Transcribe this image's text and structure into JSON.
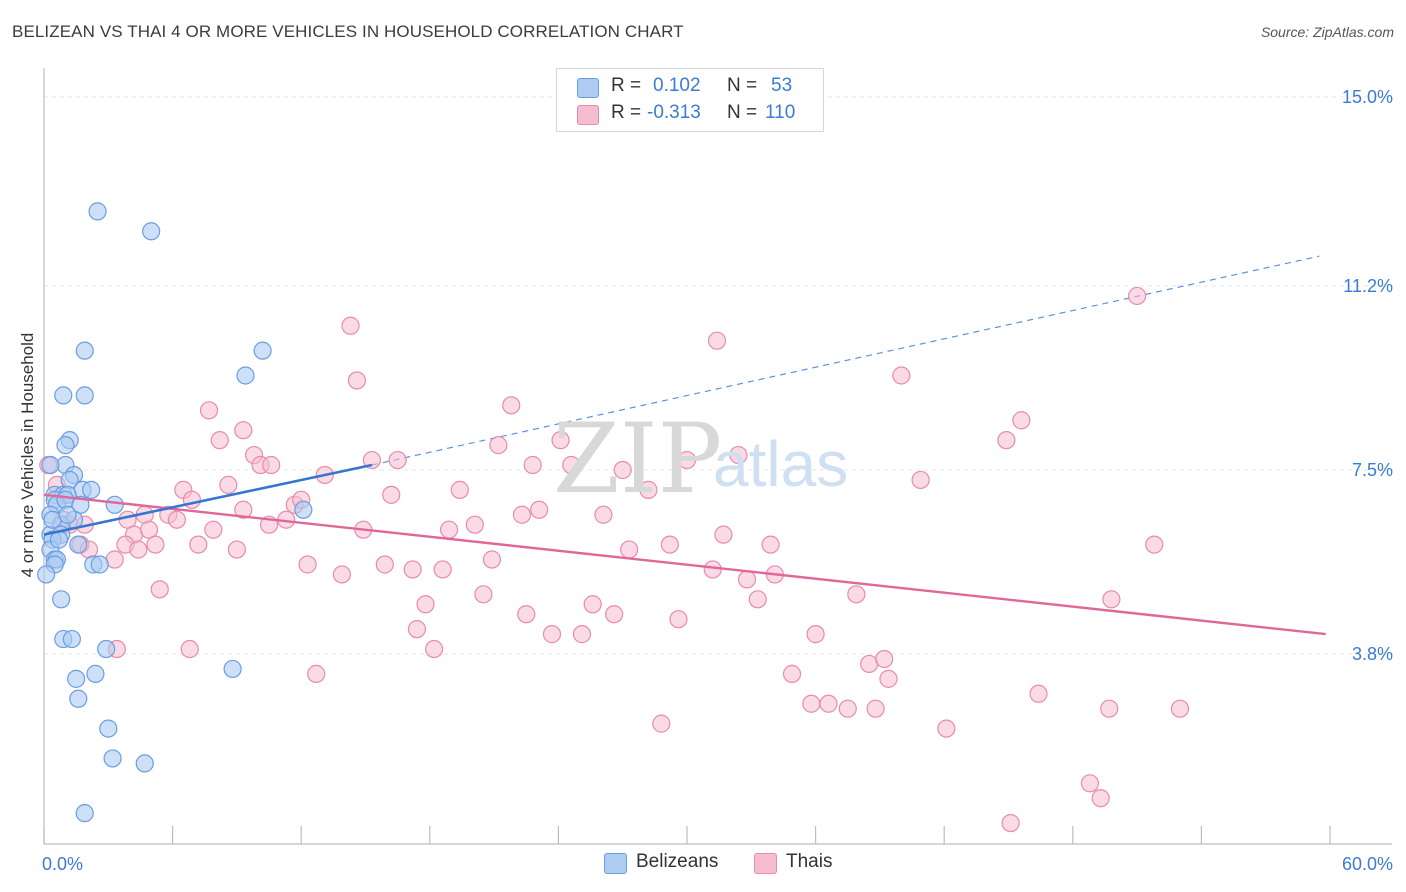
{
  "title": "BELIZEAN VS THAI 4 OR MORE VEHICLES IN HOUSEHOLD CORRELATION CHART",
  "source": "Source: ZipAtlas.com",
  "watermark": {
    "zip": "ZIP",
    "atlas": "atlas"
  },
  "legend_top": {
    "rows": [
      {
        "r_label": "R =",
        "r_value": "0.102",
        "n_label": "N =",
        "n_value": "53"
      },
      {
        "r_label": "R =",
        "r_value": "-0.313",
        "n_label": "N =",
        "n_value": "110"
      }
    ]
  },
  "legend_bottom": {
    "items": [
      "Belizeans",
      "Thais"
    ]
  },
  "colors": {
    "blue_fill": "#aecbf2",
    "blue_stroke": "#6a9ee0",
    "blue_line": "#3576d2",
    "pink_fill": "#f6bcd0",
    "pink_stroke": "#e98bab",
    "pink_line": "#e0679a",
    "axis_text": "#3a7bd5",
    "grid": "#e4e4e4"
  },
  "chart_data": {
    "type": "scatter",
    "title": "BELIZEAN VS THAI 4 OR MORE VEHICLES IN HOUSEHOLD CORRELATION CHART",
    "xlabel": "",
    "ylabel": "4 or more Vehicles in Household",
    "xlim": [
      0,
      60
    ],
    "ylim": [
      0,
      15.5
    ],
    "x_tick_labels": [
      {
        "value": 0,
        "label": "0.0%"
      },
      {
        "value": 60,
        "label": "60.0%"
      }
    ],
    "y_ticks": [
      {
        "value": 15.0,
        "label": "15.0%"
      },
      {
        "value": 11.2,
        "label": "11.2%"
      },
      {
        "value": 7.5,
        "label": "7.5%"
      },
      {
        "value": 3.8,
        "label": "3.8%"
      }
    ],
    "grid": true,
    "series": [
      {
        "name": "Belizeans",
        "r": 0.102,
        "n": 53,
        "trend": {
          "x0": 0,
          "y0": 6.2,
          "x1": 15.3,
          "y1": 7.6,
          "dashed_to_x": 59.5,
          "dashed_to_y": 11.8
        },
        "points": [
          [
            2.5,
            12.7
          ],
          [
            5.0,
            12.3
          ],
          [
            10.2,
            9.9
          ],
          [
            1.9,
            9.9
          ],
          [
            9.4,
            9.4
          ],
          [
            0.9,
            9.0
          ],
          [
            1.9,
            9.0
          ],
          [
            1.2,
            8.1
          ],
          [
            1.0,
            8.0
          ],
          [
            1.0,
            7.6
          ],
          [
            0.3,
            7.6
          ],
          [
            1.4,
            7.4
          ],
          [
            1.2,
            7.3
          ],
          [
            0.5,
            7.0
          ],
          [
            0.9,
            7.0
          ],
          [
            1.8,
            7.1
          ],
          [
            2.2,
            7.1
          ],
          [
            0.5,
            6.9
          ],
          [
            1.1,
            7.0
          ],
          [
            0.6,
            6.8
          ],
          [
            1.0,
            6.9
          ],
          [
            1.7,
            6.8
          ],
          [
            3.3,
            6.8
          ],
          [
            12.1,
            6.7
          ],
          [
            0.3,
            6.6
          ],
          [
            1.4,
            6.5
          ],
          [
            0.8,
            6.4
          ],
          [
            0.3,
            6.2
          ],
          [
            0.8,
            6.2
          ],
          [
            0.4,
            6.1
          ],
          [
            1.6,
            6.0
          ],
          [
            0.3,
            5.9
          ],
          [
            0.5,
            5.7
          ],
          [
            0.6,
            5.7
          ],
          [
            0.5,
            5.6
          ],
          [
            2.3,
            5.6
          ],
          [
            2.6,
            5.6
          ],
          [
            0.1,
            5.4
          ],
          [
            0.8,
            4.9
          ],
          [
            0.9,
            4.1
          ],
          [
            1.3,
            4.1
          ],
          [
            2.9,
            3.9
          ],
          [
            8.8,
            3.5
          ],
          [
            2.4,
            3.4
          ],
          [
            1.5,
            3.3
          ],
          [
            1.6,
            2.9
          ],
          [
            3.0,
            2.3
          ],
          [
            3.2,
            1.7
          ],
          [
            4.7,
            1.6
          ],
          [
            1.9,
            0.6
          ],
          [
            0.4,
            6.5
          ],
          [
            1.1,
            6.6
          ],
          [
            0.7,
            6.1
          ]
        ]
      },
      {
        "name": "Thais",
        "r": -0.313,
        "n": 110,
        "trend": {
          "x0": 0,
          "y0": 7.0,
          "x1": 59.8,
          "y1": 4.2
        },
        "points": [
          [
            0.2,
            7.6
          ],
          [
            0.6,
            7.2
          ],
          [
            0.9,
            6.5
          ],
          [
            1.2,
            6.4
          ],
          [
            1.7,
            6.0
          ],
          [
            2.1,
            5.9
          ],
          [
            3.3,
            5.7
          ],
          [
            3.9,
            6.5
          ],
          [
            4.2,
            6.2
          ],
          [
            4.7,
            6.6
          ],
          [
            4.9,
            6.3
          ],
          [
            5.2,
            6.0
          ],
          [
            5.4,
            5.1
          ],
          [
            5.8,
            6.6
          ],
          [
            6.2,
            6.5
          ],
          [
            6.5,
            7.1
          ],
          [
            6.9,
            6.9
          ],
          [
            7.2,
            6.0
          ],
          [
            7.9,
            6.3
          ],
          [
            7.7,
            8.7
          ],
          [
            8.2,
            8.1
          ],
          [
            8.6,
            7.2
          ],
          [
            9.0,
            5.9
          ],
          [
            9.3,
            8.3
          ],
          [
            9.8,
            7.8
          ],
          [
            10.1,
            7.6
          ],
          [
            10.5,
            6.4
          ],
          [
            11.3,
            6.5
          ],
          [
            11.7,
            6.8
          ],
          [
            12.0,
            6.9
          ],
          [
            12.3,
            5.6
          ],
          [
            13.1,
            7.4
          ],
          [
            13.9,
            5.4
          ],
          [
            14.3,
            10.4
          ],
          [
            14.6,
            9.3
          ],
          [
            14.9,
            6.3
          ],
          [
            15.3,
            7.7
          ],
          [
            15.9,
            5.6
          ],
          [
            16.2,
            7.0
          ],
          [
            16.5,
            7.7
          ],
          [
            17.2,
            5.5
          ],
          [
            17.8,
            4.8
          ],
          [
            17.4,
            4.3
          ],
          [
            18.2,
            3.9
          ],
          [
            18.9,
            6.3
          ],
          [
            18.6,
            5.5
          ],
          [
            19.4,
            7.1
          ],
          [
            20.1,
            6.4
          ],
          [
            20.5,
            5.0
          ],
          [
            20.9,
            5.7
          ],
          [
            21.2,
            8.0
          ],
          [
            21.8,
            8.8
          ],
          [
            22.3,
            6.6
          ],
          [
            22.5,
            4.6
          ],
          [
            22.8,
            7.6
          ],
          [
            23.1,
            6.7
          ],
          [
            23.7,
            4.2
          ],
          [
            24.1,
            8.1
          ],
          [
            24.6,
            7.6
          ],
          [
            25.1,
            4.2
          ],
          [
            25.6,
            4.8
          ],
          [
            26.1,
            6.6
          ],
          [
            26.6,
            4.6
          ],
          [
            27.0,
            7.5
          ],
          [
            27.3,
            5.9
          ],
          [
            28.2,
            7.1
          ],
          [
            28.8,
            2.4
          ],
          [
            29.6,
            4.5
          ],
          [
            29.2,
            6.0
          ],
          [
            30.0,
            7.7
          ],
          [
            31.2,
            5.5
          ],
          [
            31.4,
            10.1
          ],
          [
            31.7,
            6.2
          ],
          [
            32.4,
            7.8
          ],
          [
            32.8,
            5.3
          ],
          [
            33.3,
            4.9
          ],
          [
            33.9,
            6.0
          ],
          [
            34.1,
            5.4
          ],
          [
            34.9,
            3.4
          ],
          [
            35.8,
            2.8
          ],
          [
            36.0,
            4.2
          ],
          [
            36.6,
            2.8
          ],
          [
            37.5,
            2.7
          ],
          [
            37.9,
            5.0
          ],
          [
            38.5,
            3.6
          ],
          [
            38.8,
            2.7
          ],
          [
            39.2,
            3.7
          ],
          [
            39.4,
            3.3
          ],
          [
            40.0,
            9.4
          ],
          [
            40.9,
            7.3
          ],
          [
            42.1,
            2.3
          ],
          [
            44.9,
            8.1
          ],
          [
            45.1,
            0.4
          ],
          [
            45.6,
            8.5
          ],
          [
            46.4,
            3.0
          ],
          [
            48.8,
            1.2
          ],
          [
            49.3,
            0.9
          ],
          [
            49.7,
            2.7
          ],
          [
            49.8,
            4.9
          ],
          [
            51.8,
            6.0
          ],
          [
            51.0,
            11.0
          ],
          [
            53.0,
            2.7
          ],
          [
            12.7,
            3.4
          ],
          [
            6.8,
            3.9
          ],
          [
            9.3,
            6.7
          ],
          [
            10.6,
            7.6
          ],
          [
            3.4,
            3.9
          ],
          [
            3.8,
            6.0
          ],
          [
            4.4,
            5.9
          ],
          [
            1.9,
            6.4
          ]
        ]
      }
    ]
  }
}
